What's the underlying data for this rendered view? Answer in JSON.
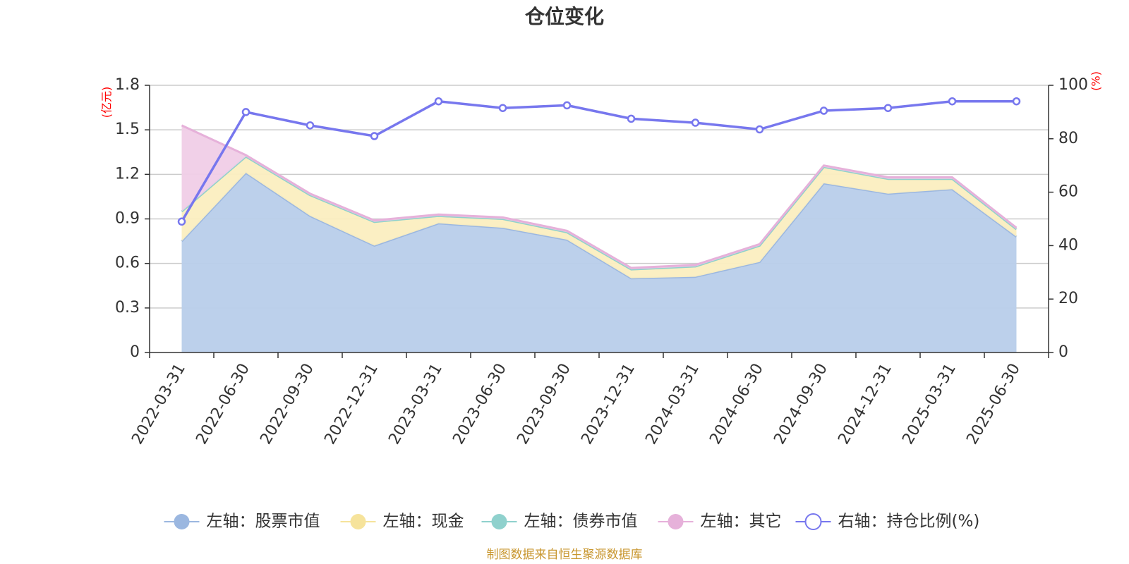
{
  "chart_data": {
    "type": "area",
    "title": "仓位变化",
    "left_axis_unit": "(亿元)",
    "right_axis_unit": "(%)",
    "x": [
      "2022-03-31",
      "2022-06-30",
      "2022-09-30",
      "2022-12-31",
      "2023-03-31",
      "2023-06-30",
      "2023-09-30",
      "2023-12-31",
      "2024-03-31",
      "2024-06-30",
      "2024-09-30",
      "2024-12-31",
      "2025-03-31",
      "2025-06-30"
    ],
    "left_axis": {
      "ylim": [
        0,
        1.8
      ],
      "ticks": [
        "0",
        "0.3",
        "0.6",
        "0.9",
        "1.2",
        "1.5",
        "1.8"
      ]
    },
    "right_axis": {
      "ylim": [
        0,
        100
      ],
      "ticks": [
        "0",
        "20",
        "40",
        "60",
        "80",
        "100"
      ]
    },
    "series": [
      {
        "name": "左轴：股票市值",
        "axis": "left",
        "stacked": true,
        "color": "#9bb7e0",
        "fill": "#b8cdea",
        "values": [
          0.75,
          1.21,
          0.92,
          0.72,
          0.87,
          0.84,
          0.76,
          0.5,
          0.51,
          0.61,
          1.14,
          1.07,
          1.1,
          0.78
        ]
      },
      {
        "name": "左轴：现金",
        "axis": "left",
        "stacked": true,
        "color": "#f6e39b",
        "fill": "#fbeec0",
        "values": [
          0.2,
          0.11,
          0.14,
          0.16,
          0.05,
          0.06,
          0.05,
          0.06,
          0.07,
          0.11,
          0.11,
          0.1,
          0.07,
          0.05
        ]
      },
      {
        "name": "左轴：债券市值",
        "axis": "left",
        "stacked": true,
        "color": "#8fd1cd",
        "fill": "#a6dcd8",
        "values": [
          0.0,
          0.0,
          0.0,
          0.0,
          0.0,
          0.0,
          0.0,
          0.0,
          0.0,
          0.0,
          0.0,
          0.0,
          0.0,
          0.0
        ]
      },
      {
        "name": "左轴：其它",
        "axis": "left",
        "stacked": true,
        "color": "#e6b1da",
        "fill": "#f0cde7",
        "values": [
          0.58,
          0.01,
          0.01,
          0.01,
          0.01,
          0.01,
          0.01,
          0.01,
          0.01,
          0.01,
          0.01,
          0.01,
          0.01,
          0.01
        ]
      },
      {
        "name": "右轴：持仓比例(%)",
        "axis": "right",
        "color": "#7777ee",
        "values": [
          49,
          90,
          85,
          81,
          94,
          91.5,
          92.5,
          87.5,
          86,
          83.5,
          90.5,
          91.5,
          94,
          94
        ]
      }
    ],
    "grid": true,
    "legend_position": "bottom"
  },
  "source": "制图数据来自恒生聚源数据库"
}
